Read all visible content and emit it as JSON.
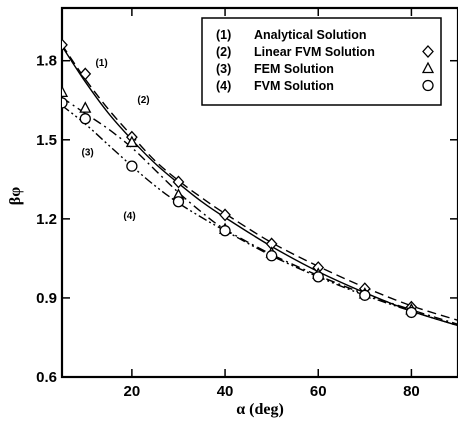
{
  "chart_data": {
    "type": "line",
    "xlabel": "α (deg)",
    "ylabel": "βφ",
    "xlim": [
      5,
      90
    ],
    "ylim": [
      0.6,
      2.0
    ],
    "x_ticks": [
      20,
      40,
      60,
      80
    ],
    "y_ticks": [
      0.6,
      0.9,
      1.2,
      1.5,
      1.8
    ],
    "x_tick_labels": [
      "20",
      "40",
      "60",
      "80"
    ],
    "y_tick_labels": [
      "0.6",
      "0.9",
      "1.2",
      "1.5",
      "1.8"
    ],
    "grid": false,
    "legend_position": "top-right",
    "legend": [
      {
        "num": "(1)",
        "name": "Analytical Solution",
        "marker": ""
      },
      {
        "num": "(2)",
        "name": "Linear FVM Solution",
        "marker": "diamond"
      },
      {
        "num": "(3)",
        "name": "FEM Solution",
        "marker": "triangle"
      },
      {
        "num": "(4)",
        "name": "FVM Solution",
        "marker": "circle"
      }
    ],
    "series": [
      {
        "label": "(1)",
        "style": "solid",
        "x": [
          5,
          10,
          15,
          20,
          25,
          30,
          35,
          40,
          50,
          60,
          70,
          80,
          90
        ],
        "y": [
          1.855,
          1.72,
          1.6,
          1.5,
          1.41,
          1.335,
          1.265,
          1.205,
          1.095,
          1.0,
          0.92,
          0.85,
          0.795
        ]
      },
      {
        "label": "(2)",
        "style": "dashed",
        "x": [
          5,
          10,
          15,
          20,
          25,
          30,
          35,
          40,
          50,
          60,
          70,
          80,
          90
        ],
        "y": [
          1.86,
          1.73,
          1.615,
          1.515,
          1.42,
          1.345,
          1.28,
          1.22,
          1.11,
          1.02,
          0.94,
          0.87,
          0.815
        ]
      },
      {
        "label": "(3)",
        "style": "dashdot",
        "x": [
          5,
          10,
          15,
          20,
          25,
          30,
          35,
          40,
          50,
          60,
          70,
          80,
          90
        ],
        "y": [
          1.66,
          1.6,
          1.54,
          1.47,
          1.385,
          1.3,
          1.225,
          1.16,
          1.065,
          0.985,
          0.915,
          0.855,
          0.8
        ]
      },
      {
        "label": "(4)",
        "style": "dashdotdot",
        "x": [
          5,
          10,
          15,
          20,
          25,
          30,
          35,
          40,
          50,
          60,
          70,
          80,
          90
        ],
        "y": [
          1.63,
          1.56,
          1.48,
          1.4,
          1.325,
          1.26,
          1.205,
          1.155,
          1.06,
          0.98,
          0.91,
          0.85,
          0.795
        ]
      }
    ],
    "markers": [
      {
        "name": "Linear FVM Solution",
        "shape": "diamond",
        "x": [
          5,
          10,
          20,
          30,
          40,
          50,
          60,
          70,
          80
        ],
        "y": [
          1.86,
          1.75,
          1.51,
          1.34,
          1.215,
          1.105,
          1.015,
          0.935,
          0.865
        ]
      },
      {
        "name": "FEM Solution",
        "shape": "triangle",
        "x": [
          5,
          10,
          20,
          30,
          40,
          50,
          60,
          70,
          80
        ],
        "y": [
          1.68,
          1.62,
          1.49,
          1.29,
          1.16,
          1.07,
          0.99,
          0.915,
          0.855
        ]
      },
      {
        "name": "FVM Solution",
        "shape": "circle",
        "x": [
          5,
          10,
          20,
          30,
          40,
          50,
          60,
          70,
          80
        ],
        "y": [
          1.64,
          1.58,
          1.4,
          1.265,
          1.155,
          1.06,
          0.98,
          0.91,
          0.845
        ]
      }
    ],
    "curve_labels": [
      {
        "text": "(1)",
        "x": 13.5,
        "y": 1.78
      },
      {
        "text": "(2)",
        "x": 22.5,
        "y": 1.64
      },
      {
        "text": "(3)",
        "x": 10.5,
        "y": 1.44
      },
      {
        "text": "(4)",
        "x": 19.5,
        "y": 1.2
      }
    ]
  }
}
